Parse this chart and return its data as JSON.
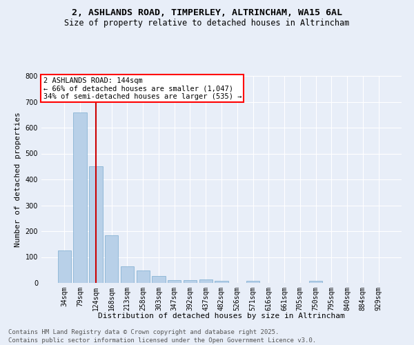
{
  "title_line1": "2, ASHLANDS ROAD, TIMPERLEY, ALTRINCHAM, WA15 6AL",
  "title_line2": "Size of property relative to detached houses in Altrincham",
  "xlabel": "Distribution of detached houses by size in Altrincham",
  "ylabel": "Number of detached properties",
  "footer_line1": "Contains HM Land Registry data © Crown copyright and database right 2025.",
  "footer_line2": "Contains public sector information licensed under the Open Government Licence v3.0.",
  "categories": [
    "34sqm",
    "79sqm",
    "124sqm",
    "168sqm",
    "213sqm",
    "258sqm",
    "303sqm",
    "347sqm",
    "392sqm",
    "437sqm",
    "482sqm",
    "526sqm",
    "571sqm",
    "616sqm",
    "661sqm",
    "705sqm",
    "750sqm",
    "795sqm",
    "840sqm",
    "884sqm",
    "929sqm"
  ],
  "values": [
    125,
    660,
    450,
    185,
    63,
    47,
    27,
    10,
    12,
    14,
    7,
    0,
    8,
    0,
    0,
    0,
    8,
    0,
    0,
    0,
    0
  ],
  "bar_color": "#b8d0e8",
  "bar_edge_color": "#7aabcf",
  "redline_index": 2,
  "annotation_text": "2 ASHLANDS ROAD: 144sqm\n← 66% of detached houses are smaller (1,047)\n34% of semi-detached houses are larger (535) →",
  "annotation_box_color": "white",
  "annotation_box_edge_color": "red",
  "redline_color": "#cc0000",
  "background_color": "#e8eef8",
  "grid_color": "white",
  "ylim": [
    0,
    800
  ],
  "yticks": [
    0,
    100,
    200,
    300,
    400,
    500,
    600,
    700,
    800
  ],
  "title_fontsize": 9.5,
  "subtitle_fontsize": 8.5,
  "axis_label_fontsize": 8,
  "tick_fontsize": 7,
  "annotation_fontsize": 7.5,
  "footer_fontsize": 6.5
}
